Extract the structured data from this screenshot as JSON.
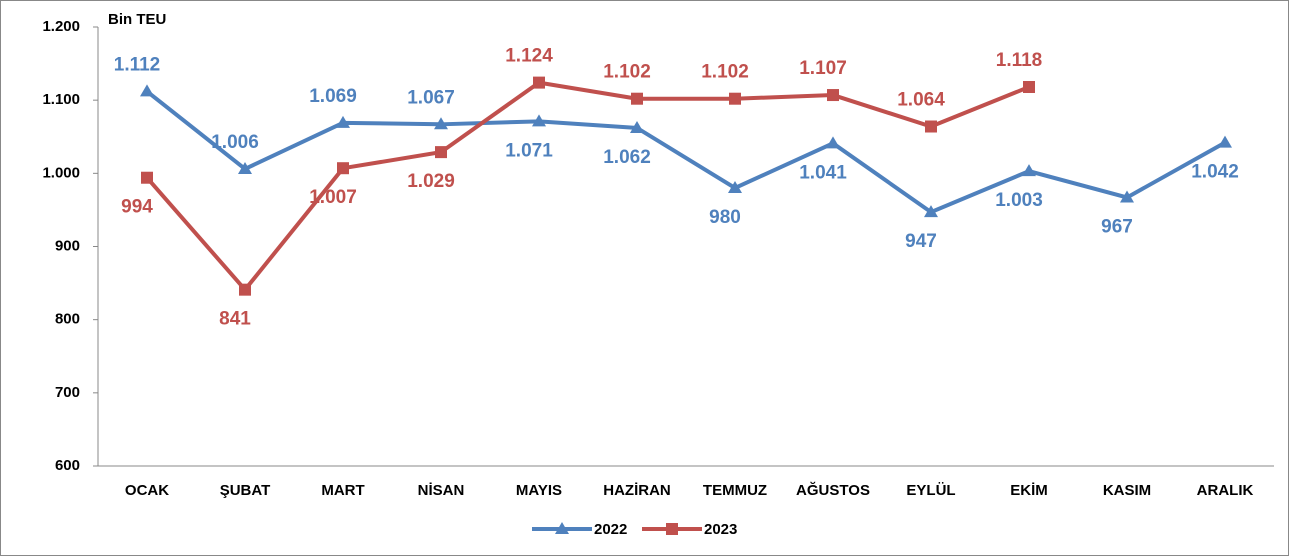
{
  "chart_data": {
    "type": "line",
    "y_axis_label": "Bin TEU",
    "categories": [
      "OCAK",
      "ŞUBAT",
      "MART",
      "NİSAN",
      "MAYIS",
      "HAZİRAN",
      "TEMMUZ",
      "AĞUSTOS",
      "EYLÜL",
      "EKİM",
      "KASIM",
      "ARALIK"
    ],
    "series": [
      {
        "name": "2022",
        "color": "#4f81bd",
        "marker": "triangle",
        "values": [
          1112,
          1006,
          1069,
          1067,
          1071,
          1062,
          980,
          1041,
          947,
          1003,
          967,
          1042
        ],
        "value_labels": [
          "1.112",
          "1.006",
          "1.069",
          "1.067",
          "1.071",
          "1.062",
          "980",
          "1.041",
          "947",
          "1.003",
          "967",
          "1.042"
        ]
      },
      {
        "name": "2023",
        "color": "#c0504d",
        "marker": "square",
        "values": [
          994,
          841,
          1007,
          1029,
          1124,
          1102,
          1102,
          1107,
          1064,
          1118,
          null,
          null
        ],
        "value_labels": [
          "994",
          "841",
          "1.007",
          "1.029",
          "1.124",
          "1.102",
          "1.102",
          "1.107",
          "1.064",
          "1.118",
          null,
          null
        ]
      }
    ],
    "ylim": [
      600,
      1200
    ],
    "yticks": [
      {
        "value": 600,
        "label": "600"
      },
      700,
      800,
      900,
      {
        "value": 1000,
        "label": "1.000"
      },
      {
        "value": 1100,
        "label": "1.100"
      },
      {
        "value": 1200,
        "label": "1.200"
      }
    ],
    "grid": false,
    "legend": "bottom"
  }
}
